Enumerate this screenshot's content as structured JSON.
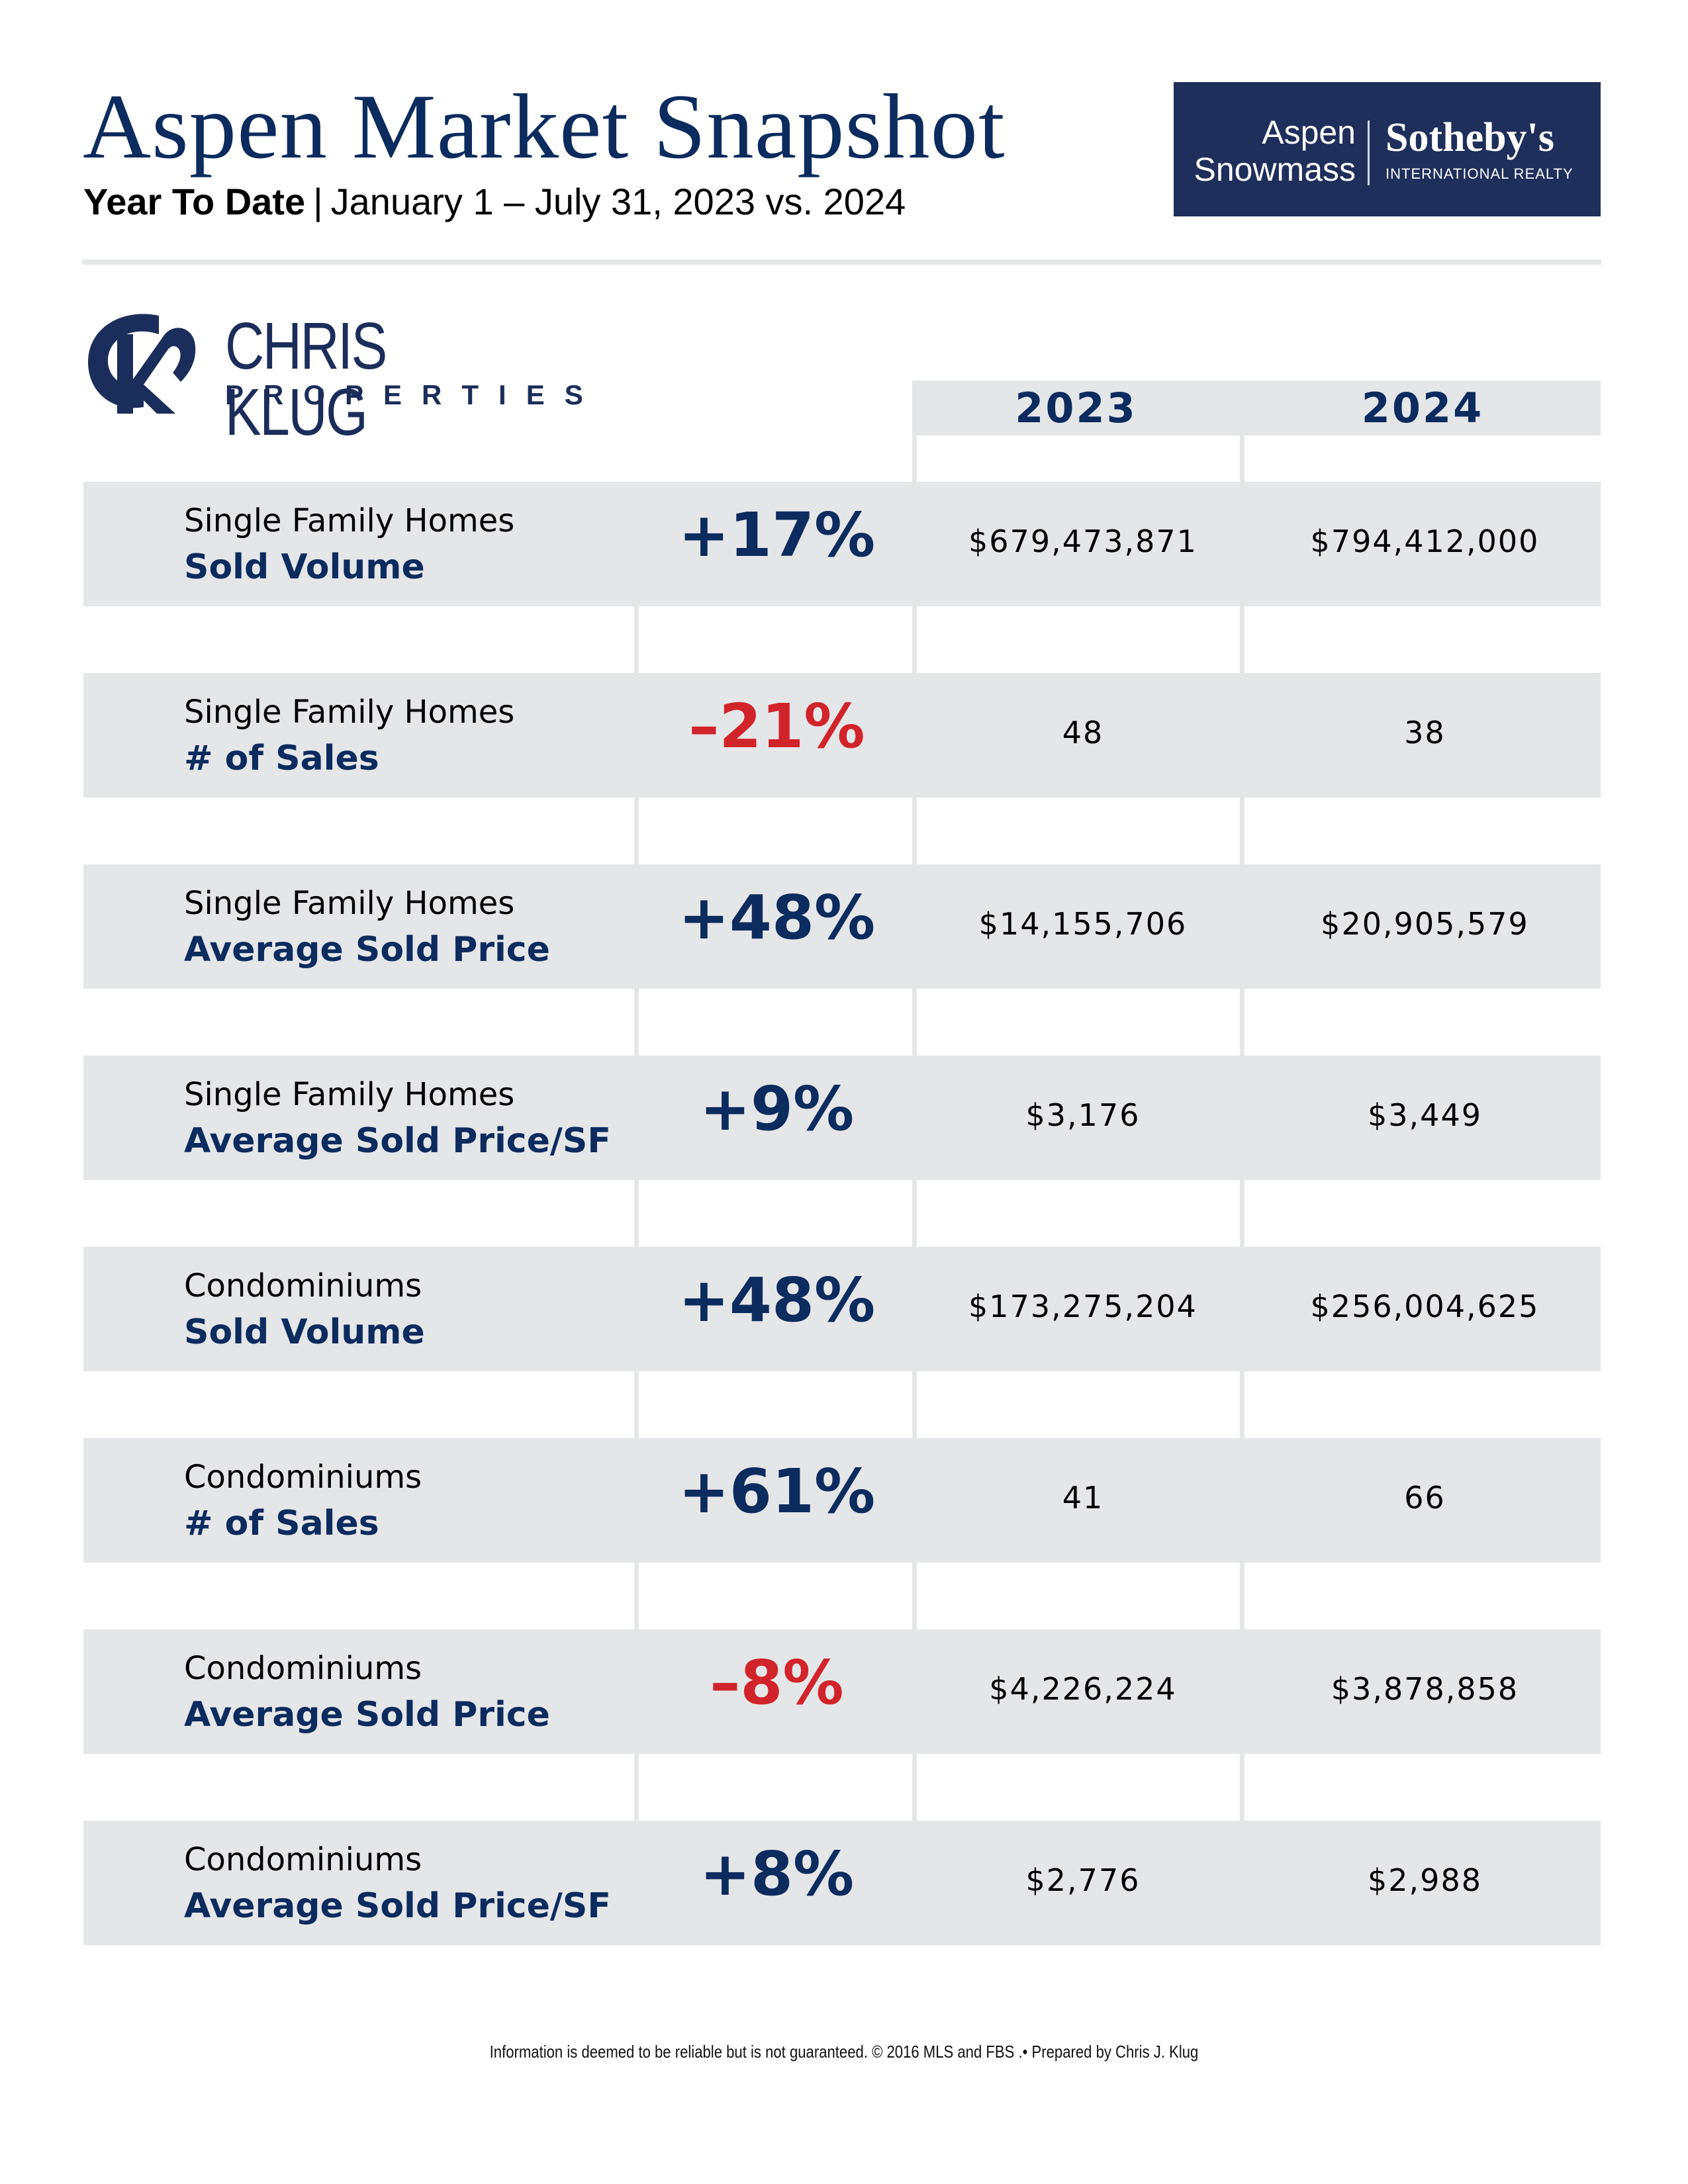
{
  "header": {
    "title": "Aspen Market Snapshot",
    "subtitle_bold": "Year To Date",
    "subtitle_separator": "|",
    "subtitle_range": "January 1 – July 31, 2023 vs. 2024"
  },
  "brokerage_logo": {
    "left_line1": "Aspen",
    "left_line2": "Snowmass",
    "brand": "Sotheby's",
    "brand_sub": "INTERNATIONAL REALTY",
    "background_color": "#1e2f5b"
  },
  "agent_logo": {
    "monogram": "CK",
    "name": "CHRIS KLUG",
    "sub": "PROPERTIES",
    "color": "#1b2d5a"
  },
  "table": {
    "columns": [
      "2023",
      "2024"
    ],
    "colors": {
      "positive": "#0c2b5e",
      "negative": "#d1232a",
      "row_background": "#e5e6e8"
    },
    "rows": [
      {
        "category": "Single Family Homes",
        "metric": "Sold Volume",
        "change": "+17%",
        "direction": "up",
        "v2023": "$679,473,871",
        "v2024": "$794,412,000"
      },
      {
        "category": "Single Family Homes",
        "metric": "# of Sales",
        "change": "–21%",
        "direction": "down",
        "v2023": "48",
        "v2024": "38"
      },
      {
        "category": "Single Family Homes",
        "metric": "Average Sold Price",
        "change": "+48%",
        "direction": "up",
        "v2023": "$14,155,706",
        "v2024": "$20,905,579"
      },
      {
        "category": "Single Family Homes",
        "metric": "Average Sold Price/SF",
        "change": "+9%",
        "direction": "up",
        "v2023": "$3,176",
        "v2024": "$3,449"
      },
      {
        "category": "Condominiums",
        "metric": "Sold Volume",
        "change": "+48%",
        "direction": "up",
        "v2023": "$173,275,204",
        "v2024": "$256,004,625"
      },
      {
        "category": "Condominiums",
        "metric": "# of Sales",
        "change": "+61%",
        "direction": "up",
        "v2023": "41",
        "v2024": "66"
      },
      {
        "category": "Condominiums",
        "metric": "Average Sold Price",
        "change": "–8%",
        "direction": "down",
        "v2023": "$4,226,224",
        "v2024": "$3,878,858"
      },
      {
        "category": "Condominiums",
        "metric": "Average Sold Price/SF",
        "change": "+8%",
        "direction": "up",
        "v2023": "$2,776",
        "v2024": "$2,988"
      }
    ]
  },
  "footer": {
    "disclaimer": "Information is deemed to be reliable but is not guaranteed. © 2016 MLS and FBS .• Prepared by Chris J. Klug"
  }
}
